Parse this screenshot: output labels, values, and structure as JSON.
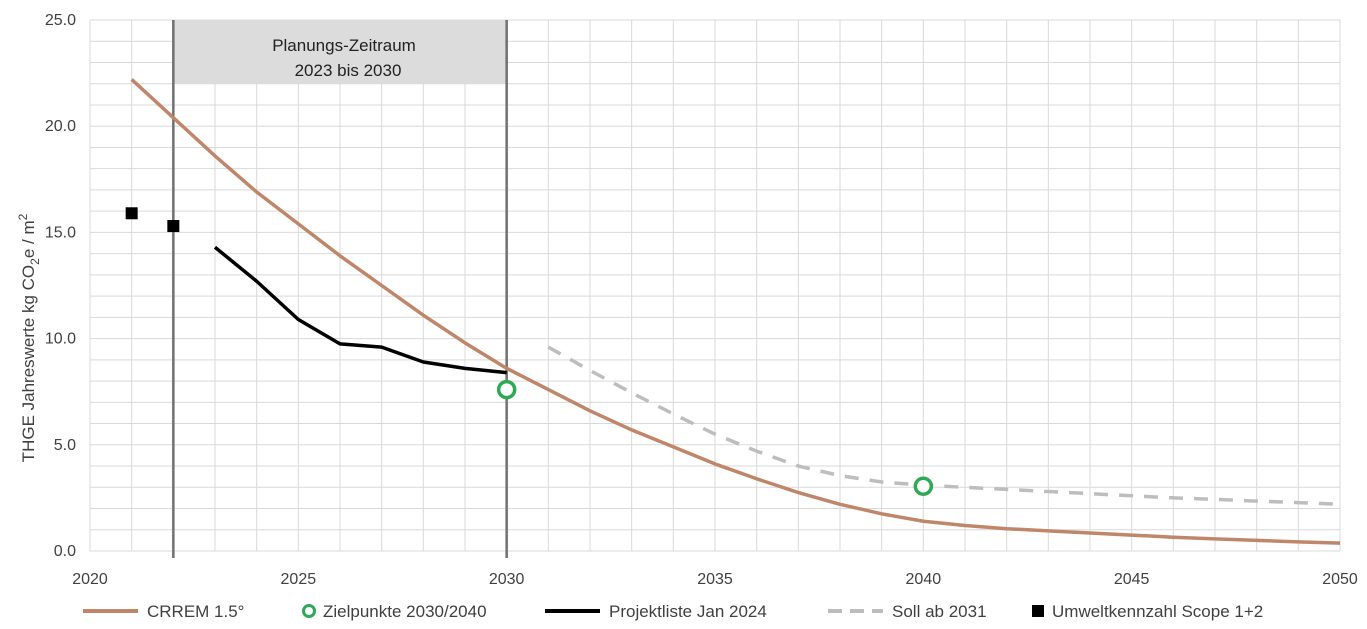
{
  "chart_data": {
    "type": "line",
    "title": "",
    "xlabel": "",
    "ylabel": "THGE Jahreswerte kg CO2e / m²",
    "ylabel_parts": {
      "main": "THGE Jahreswerte kg CO",
      "sub": "2",
      "mid": "e / m",
      "sup": "2"
    },
    "xlim": [
      2020,
      2050
    ],
    "ylim": [
      0,
      25
    ],
    "x_ticks": [
      "2020",
      "2025",
      "2030",
      "2035",
      "2040",
      "2045",
      "2050"
    ],
    "y_ticks": [
      "0.0",
      "5.0",
      "10.0",
      "15.0",
      "20.0",
      "25.0"
    ],
    "grid": true,
    "legend_position": "bottom",
    "planning_period": {
      "line1": "Planungs-Zeitraum",
      "line2": "2023 bis 2030",
      "from": 2022,
      "to": 2030,
      "y_from": 22,
      "y_to": 25
    },
    "vertical_lines": [
      2022,
      2030
    ],
    "series": [
      {
        "name": "CRREM 1.5°",
        "kind": "line",
        "color": "#C0866A",
        "x": [
          2021,
          2022,
          2023,
          2024,
          2025,
          2026,
          2027,
          2028,
          2029,
          2030,
          2031,
          2032,
          2033,
          2034,
          2035,
          2036,
          2037,
          2038,
          2039,
          2040,
          2041,
          2042,
          2043,
          2044,
          2045,
          2046,
          2047,
          2048,
          2049,
          2050
        ],
        "y": [
          22.2,
          20.4,
          18.6,
          16.9,
          15.4,
          13.9,
          12.5,
          11.1,
          9.8,
          8.6,
          7.6,
          6.6,
          5.7,
          4.9,
          4.1,
          3.4,
          2.75,
          2.2,
          1.75,
          1.4,
          1.2,
          1.05,
          0.95,
          0.85,
          0.75,
          0.65,
          0.57,
          0.5,
          0.43,
          0.37
        ]
      },
      {
        "name": "Zielpunkte 2030/2040",
        "kind": "marker-circle",
        "color": "#2EAA57",
        "x": [
          2030,
          2040
        ],
        "y": [
          7.6,
          3.05
        ]
      },
      {
        "name": "Projektliste Jan 2024",
        "kind": "line",
        "color": "#000000",
        "x": [
          2023,
          2024,
          2025,
          2026,
          2027,
          2028,
          2029,
          2030
        ],
        "y": [
          14.3,
          12.7,
          10.9,
          9.75,
          9.6,
          8.9,
          8.6,
          8.4
        ]
      },
      {
        "name": "Soll ab 2031",
        "kind": "dashed",
        "color": "#BDBDBD",
        "x": [
          2031,
          2032,
          2033,
          2034,
          2035,
          2036,
          2037,
          2038,
          2039,
          2040,
          2041,
          2042,
          2043,
          2044,
          2045,
          2046,
          2047,
          2048,
          2049,
          2050
        ],
        "y": [
          9.6,
          8.5,
          7.45,
          6.45,
          5.5,
          4.7,
          4.0,
          3.55,
          3.25,
          3.1,
          3.0,
          2.9,
          2.8,
          2.7,
          2.6,
          2.5,
          2.43,
          2.35,
          2.28,
          2.2
        ]
      },
      {
        "name": "Umweltkennzahl Scope 1+2",
        "kind": "marker-square",
        "color": "#000000",
        "x": [
          2021,
          2022
        ],
        "y": [
          15.9,
          15.3
        ]
      }
    ]
  }
}
